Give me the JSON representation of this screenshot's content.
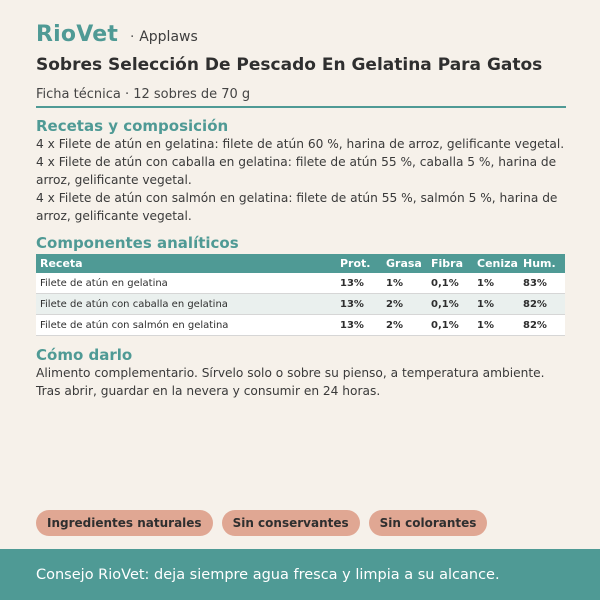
{
  "brand": "RioVet",
  "separator": "·",
  "maker": "Applaws",
  "title": "Sobres Selección De Pescado En Gelatina Para Gatos",
  "subtitle": "Ficha técnica · 12 sobres de 70 g",
  "recipes": {
    "heading": "Recetas y composición",
    "items": [
      "4 x Filete de atún en gelatina: filete de atún 60 %, harina de arroz, gelificante vegetal.",
      "4 x Filete de atún con caballa en gelatina: filete de atún 55 %, caballa 5 %, harina de arroz, gelificante vegetal.",
      "4 x Filete de atún con salmón en gelatina: filete de atún 55 %, salmón 5 %, harina de arroz, gelificante vegetal."
    ]
  },
  "analytics": {
    "heading": "Componentes analíticos",
    "columns": [
      "Receta",
      "Prot.",
      "Grasa",
      "Fibra",
      "Ceniza",
      "Hum."
    ],
    "rows": [
      [
        "Filete de atún en gelatina",
        "13%",
        "1%",
        "0,1%",
        "1%",
        "83%"
      ],
      [
        "Filete de atún con caballa en gelatina",
        "13%",
        "2%",
        "0,1%",
        "1%",
        "82%"
      ],
      [
        "Filete de atún con salmón en gelatina",
        "13%",
        "2%",
        "0,1%",
        "1%",
        "82%"
      ]
    ]
  },
  "usage": {
    "heading": "Cómo darlo",
    "text": "Alimento complementario. Sírvelo solo o sobre su pienso, a temperatura ambiente. Tras abrir, guardar en la nevera y consumir en 24 horas."
  },
  "tags": [
    "Ingredientes naturales",
    "Sin conservantes",
    "Sin colorantes"
  ],
  "footer": "Consejo RioVet: deja siempre agua fresca y limpia a su alcance.",
  "colors": {
    "accent": "#4f9a95",
    "tag": "#e0a793",
    "background": "#f6f1ea"
  }
}
